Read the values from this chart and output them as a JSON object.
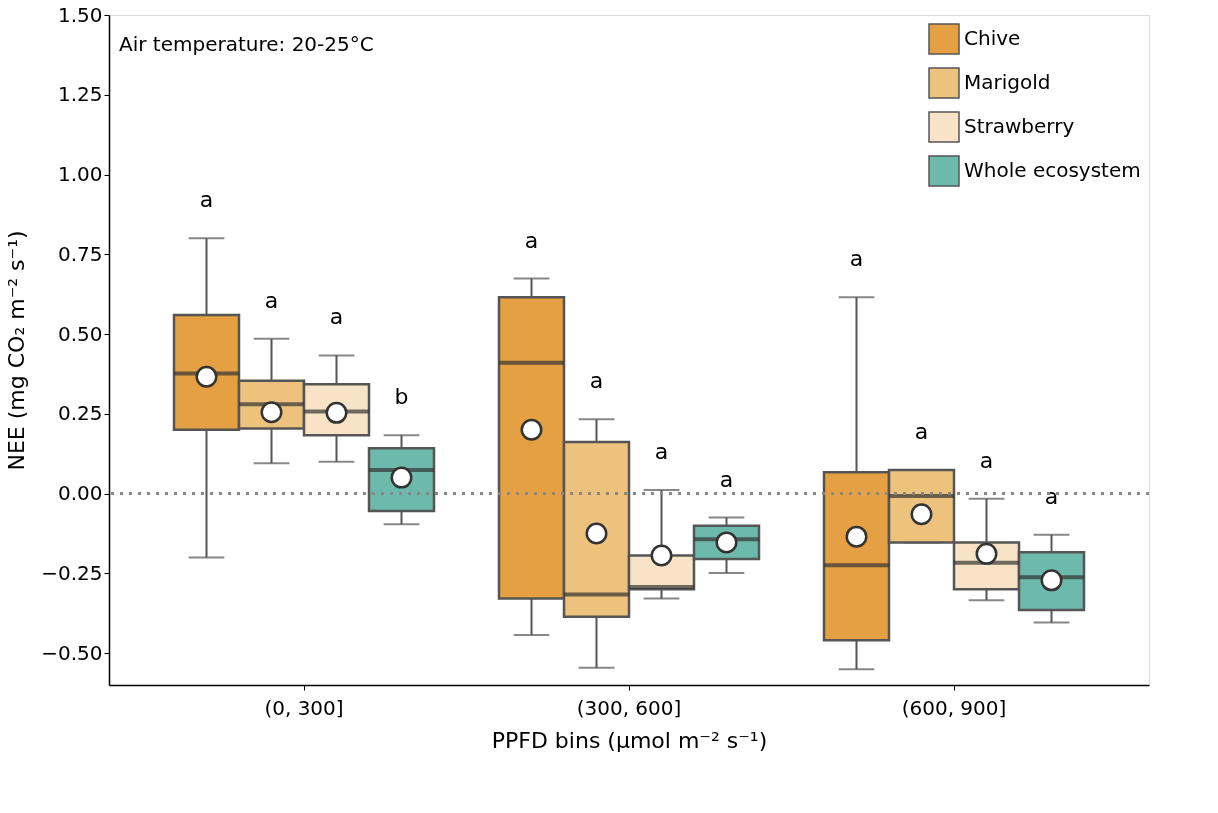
{
  "chart_data": {
    "type": "box",
    "xlabel": "PPFD bins (µmol m⁻² s⁻¹)",
    "ylabel": "NEE (mg CO₂ m⁻² s⁻¹)",
    "categories": [
      "(0, 300]",
      "(300, 600]",
      "(600, 900]"
    ],
    "ylim": [
      -0.6,
      1.5
    ],
    "yticks": [
      {
        "value": -0.5,
        "label": "−0.50"
      },
      {
        "value": -0.25,
        "label": "−0.25"
      },
      {
        "value": 0,
        "label": "0.00"
      },
      {
        "value": 0.25,
        "label": "0.25"
      },
      {
        "value": 0.5,
        "label": "0.50"
      },
      {
        "value": 0.75,
        "label": "0.75"
      },
      {
        "value": 1,
        "label": "1.00"
      },
      {
        "value": 1.25,
        "label": "1.25"
      },
      {
        "value": 1.5,
        "label": "1.50"
      }
    ],
    "grid": false,
    "legend": "top right",
    "annotations": [
      "Air temperature: 20-25°C"
    ],
    "ref_lines": [
      {
        "axis": "y",
        "value": 0,
        "color": "#888888",
        "line_style": "dotted"
      }
    ],
    "series": [
      {
        "name": "Chive",
        "color": "#e5a043",
        "value_labels": [
          "a",
          "a",
          "a"
        ],
        "boxes": [
          {
            "low": -0.2,
            "q1": 0.2,
            "median": 0.376,
            "q3": 0.56,
            "high": 0.8,
            "mean": 0.366
          },
          {
            "low": -0.443,
            "q1": -0.329,
            "median": 0.41,
            "q3": 0.615,
            "high": 0.674,
            "mean": 0.2
          },
          {
            "low": -0.551,
            "q1": -0.46,
            "median": -0.225,
            "q3": 0.067,
            "high": 0.615,
            "mean": -0.135
          }
        ]
      },
      {
        "name": "Marigold",
        "color": "#edc27c",
        "value_labels": [
          "a",
          "a",
          "a"
        ],
        "boxes": [
          {
            "low": 0.095,
            "q1": 0.204,
            "median": 0.28,
            "q3": 0.354,
            "high": 0.485,
            "mean": 0.255
          },
          {
            "low": -0.546,
            "q1": -0.386,
            "median": -0.316,
            "q3": 0.162,
            "high": 0.233,
            "mean": -0.125
          },
          {
            "low": -0.153,
            "q1": -0.153,
            "median": -0.008,
            "q3": 0.074,
            "high": 0.074,
            "mean": -0.065
          }
        ]
      },
      {
        "name": "Strawberry",
        "color": "#f8e3c6",
        "value_labels": [
          "a",
          "a",
          "a"
        ],
        "boxes": [
          {
            "low": 0.1,
            "q1": 0.183,
            "median": 0.257,
            "q3": 0.343,
            "high": 0.433,
            "mean": 0.253
          },
          {
            "low": -0.329,
            "q1": -0.3,
            "median": -0.293,
            "q3": -0.194,
            "high": 0.011,
            "mean": -0.194
          },
          {
            "low": -0.334,
            "q1": -0.3,
            "median": -0.217,
            "q3": -0.153,
            "high": -0.016,
            "mean": -0.189
          }
        ]
      },
      {
        "name": "Whole ecosystem",
        "color": "#6db9ab",
        "value_labels": [
          "b",
          "a",
          "a"
        ],
        "boxes": [
          {
            "low": -0.096,
            "q1": -0.055,
            "median": 0.074,
            "q3": 0.142,
            "high": 0.183,
            "mean": 0.05
          },
          {
            "low": -0.249,
            "q1": -0.205,
            "median": -0.143,
            "q3": -0.101,
            "high": -0.075,
            "mean": -0.153
          },
          {
            "low": -0.404,
            "q1": -0.365,
            "median": -0.262,
            "q3": -0.184,
            "high": -0.129,
            "mean": -0.272
          }
        ]
      }
    ]
  }
}
